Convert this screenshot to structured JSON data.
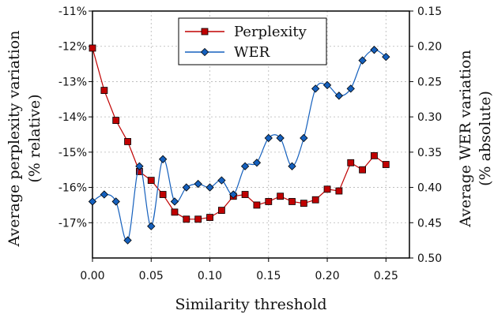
{
  "chart_data": {
    "type": "line",
    "xlabel": "Similarity threshold",
    "ylabel_left": [
      "Average perplexity variation",
      "(% relative)"
    ],
    "ylabel_right": [
      "Average WER variation",
      "(% absolute)"
    ],
    "xlim": [
      0,
      0.27
    ],
    "ylim_left": [
      -18.0,
      -11.0
    ],
    "ylim_right": [
      0.5,
      0.15
    ],
    "x_ticks": [
      0,
      0.05,
      0.1,
      0.15,
      0.2,
      0.25
    ],
    "x_tick_labels": [
      "0.00",
      "0.05",
      "0.10",
      "0.15",
      "0.20",
      "0.25"
    ],
    "y_left_ticks": [
      -11,
      -12,
      -13,
      -14,
      -15,
      -16,
      -17
    ],
    "y_left_tick_labels": [
      "-11%",
      "-12%",
      "-13%",
      "-14%",
      "-15%",
      "-16%",
      "-17%"
    ],
    "y_right_ticks": [
      0.15,
      0.2,
      0.25,
      0.3,
      0.35,
      0.4,
      0.45,
      0.5
    ],
    "y_right_tick_labels": [
      "0.15",
      "0.20",
      "0.25",
      "0.30",
      "0.35",
      "0.40",
      "0.45",
      "0.50"
    ],
    "grid": true,
    "legend_position": "top-center",
    "series": [
      {
        "name": "Perplexity",
        "axis": "left",
        "color": "#c00000",
        "marker": "square",
        "smooth": false,
        "x": [
          0,
          0.01,
          0.02,
          0.03,
          0.04,
          0.05,
          0.06,
          0.07,
          0.08,
          0.09,
          0.1,
          0.11,
          0.12,
          0.13,
          0.14,
          0.15,
          0.16,
          0.17,
          0.18,
          0.19,
          0.2,
          0.21,
          0.22,
          0.23,
          0.24,
          0.25
        ],
        "values": [
          -12.05,
          -13.25,
          -14.1,
          -14.7,
          -15.55,
          -15.8,
          -16.2,
          -16.7,
          -16.9,
          -16.9,
          -16.85,
          -16.65,
          -16.25,
          -16.2,
          -16.5,
          -16.4,
          -16.25,
          -16.4,
          -16.45,
          -16.35,
          -16.05,
          -16.1,
          -15.3,
          -15.5,
          -15.1,
          -15.35
        ]
      },
      {
        "name": "WER",
        "axis": "right",
        "color": "#1560bd",
        "marker": "diamond",
        "smooth": true,
        "x": [
          0,
          0.01,
          0.02,
          0.03,
          0.04,
          0.05,
          0.06,
          0.07,
          0.08,
          0.09,
          0.1,
          0.11,
          0.12,
          0.13,
          0.14,
          0.15,
          0.16,
          0.17,
          0.18,
          0.19,
          0.2,
          0.21,
          0.22,
          0.23,
          0.24,
          0.25
        ],
        "values": [
          0.42,
          0.41,
          0.42,
          0.475,
          0.37,
          0.455,
          0.36,
          0.42,
          0.4,
          0.395,
          0.4,
          0.39,
          0.41,
          0.37,
          0.365,
          0.33,
          0.33,
          0.37,
          0.33,
          0.26,
          0.255,
          0.27,
          0.26,
          0.22,
          0.205,
          0.215
        ]
      }
    ]
  }
}
